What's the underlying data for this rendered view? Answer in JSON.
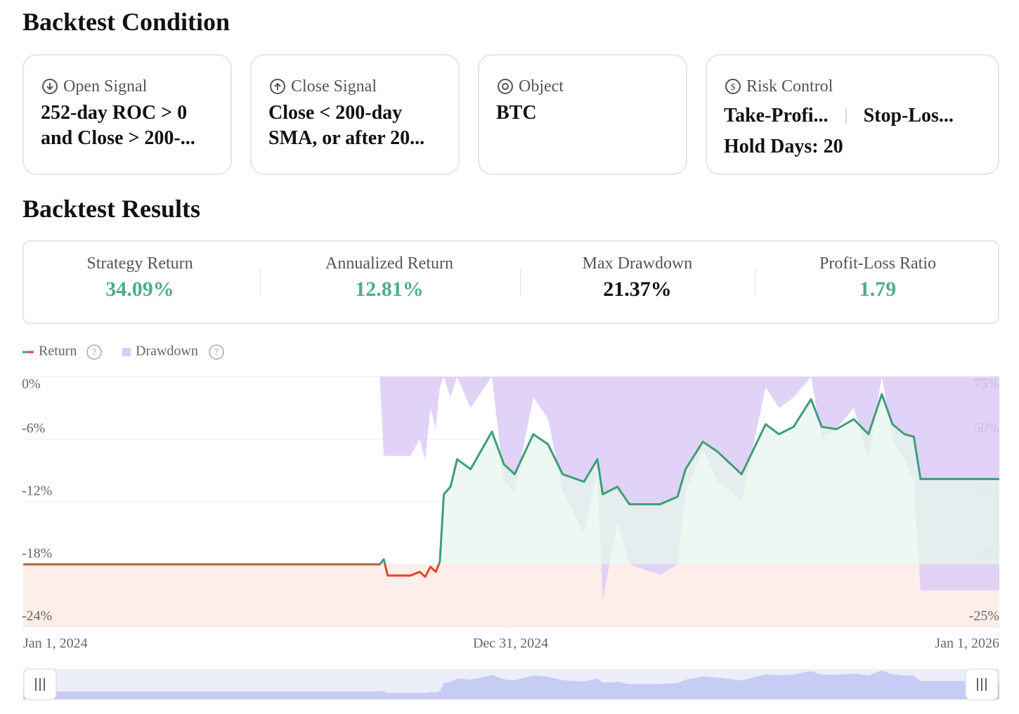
{
  "header": {
    "title": "Backtest Condition"
  },
  "conditions": [
    {
      "label": "Open Signal",
      "lines": [
        "252-day ROC > 0",
        "and Close > 200-..."
      ]
    },
    {
      "label": "Close Signal",
      "lines": [
        "Close < 200-day",
        "SMA, or after 20..."
      ]
    },
    {
      "label": "Object",
      "lines": [
        "BTC"
      ]
    },
    {
      "label": "Risk Control",
      "items": [
        "Take-Profi...",
        "Stop-Los...",
        "Hold Days: 20"
      ]
    }
  ],
  "results": {
    "title": "Backtest Results",
    "metrics": [
      {
        "label": "Strategy Return",
        "value": "34.09%",
        "color": "#4fae86"
      },
      {
        "label": "Annualized Return",
        "value": "12.81%",
        "color": "#4fae86"
      },
      {
        "label": "Max Drawdown",
        "value": "21.37%",
        "color": "#111111"
      },
      {
        "label": "Profit-Loss Ratio",
        "value": "1.79",
        "color": "#4fae86"
      }
    ]
  },
  "chart_data": {
    "type": "line",
    "x": [
      "2024-01-01",
      "2024-09-24",
      "2024-09-27",
      "2024-09-30",
      "2024-10-17",
      "2024-10-24",
      "2024-10-28",
      "2024-11-01",
      "2024-11-05",
      "2024-11-08",
      "2024-11-11",
      "2024-11-16",
      "2024-11-21",
      "2024-12-01",
      "2024-12-17",
      "2024-12-26",
      "2025-01-03",
      "2025-01-17",
      "2025-01-28",
      "2025-02-08",
      "2025-02-24",
      "2025-03-06",
      "2025-03-10",
      "2025-03-21",
      "2025-03-30",
      "2025-04-22",
      "2025-05-05",
      "2025-05-11",
      "2025-05-24",
      "2025-06-04",
      "2025-06-14",
      "2025-06-22",
      "2025-07-10",
      "2025-07-20",
      "2025-07-31",
      "2025-08-13",
      "2025-08-21",
      "2025-09-01",
      "2025-09-14",
      "2025-09-25",
      "2025-10-05",
      "2025-10-13",
      "2025-10-22",
      "2025-10-29",
      "2025-11-03",
      "2026-01-01"
    ],
    "xlim": [
      "2024-01-01",
      "2026-01-01"
    ],
    "xticks": [
      {
        "value": "2024-01-01",
        "label": "Jan 1, 2024"
      },
      {
        "value": "2024-12-31",
        "label": "Dec 31, 2024"
      },
      {
        "value": "2026-01-01",
        "label": "Jan 1, 2026"
      }
    ],
    "series": [
      {
        "name": "Return",
        "color": "#3d9e78",
        "negative_color": "#e0452b",
        "axis": "y2",
        "values": [
          0,
          0,
          2,
          -4.5,
          -4.5,
          -3,
          -5,
          -1,
          -3,
          1,
          28,
          31,
          42,
          38,
          53,
          40,
          36,
          52,
          48,
          36,
          33,
          42,
          28,
          31,
          24,
          24,
          27,
          38,
          49,
          45,
          40,
          36,
          56,
          52,
          55,
          66,
          55,
          54,
          58,
          52,
          68,
          56,
          52,
          51,
          34.09,
          34.09
        ]
      },
      {
        "name": "Drawdown",
        "color": "#dccbf6",
        "values": [
          0,
          0,
          -7.6,
          -7.6,
          -7.6,
          -6,
          -8,
          -3,
          -5,
          -1,
          0,
          -2,
          0,
          -3,
          0,
          -10,
          -11,
          -2,
          -4,
          -11,
          -15,
          -9,
          -21.37,
          -14,
          -18,
          -19,
          -18,
          -11,
          -7,
          -10,
          -11,
          -12,
          -1,
          -3,
          -2,
          0,
          -6,
          -5,
          -3,
          -8,
          0,
          -6,
          -8,
          -10,
          -20.5,
          -20.5
        ]
      }
    ],
    "ylim": [
      -24,
      0
    ],
    "yticks": [
      {
        "value": 0,
        "label": "0%"
      },
      {
        "value": -6,
        "label": "-6%"
      },
      {
        "value": -12,
        "label": "-12%"
      },
      {
        "value": -18,
        "label": "-18%"
      },
      {
        "value": -24,
        "label": "-24%"
      }
    ],
    "y2lim": [
      -25,
      75
    ],
    "y2ticks": [
      {
        "value": 75,
        "label": "75%"
      },
      {
        "value": 50,
        "label": "50%"
      },
      {
        "value": 25,
        "label": "25%"
      },
      {
        "value": 0,
        "label": "0%"
      },
      {
        "value": -25,
        "label": "-25%"
      }
    ],
    "grid": true
  }
}
